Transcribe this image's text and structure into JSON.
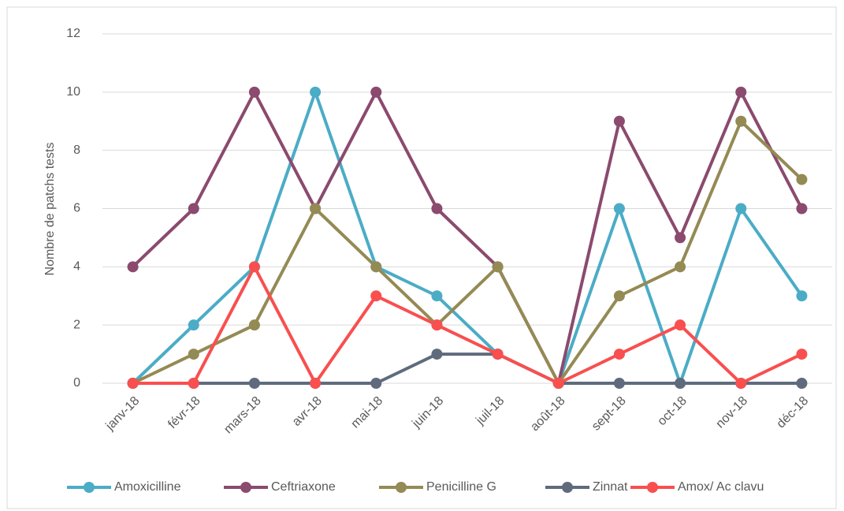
{
  "chart_data": {
    "type": "line",
    "y_label": "Nombre de patchs tests",
    "categories": [
      "janv-18",
      "févr-18",
      "mars-18",
      "avr-18",
      "mai-18",
      "juin-18",
      "juil-18",
      "août-18",
      "sept-18",
      "oct-18",
      "nov-18",
      "déc-18"
    ],
    "series": [
      {
        "name": "Amoxicilline",
        "color": "#4bacc6",
        "values": [
          0,
          2,
          4,
          10,
          4,
          3,
          1,
          0,
          6,
          0,
          6,
          3
        ]
      },
      {
        "name": "Ceftriaxone",
        "color": "#8b4a6e",
        "values": [
          4,
          6,
          10,
          6,
          10,
          6,
          4,
          0,
          9,
          5,
          10,
          6
        ]
      },
      {
        "name": "Penicilline G",
        "color": "#948a54",
        "values": [
          0,
          1,
          2,
          6,
          4,
          2,
          4,
          0,
          3,
          4,
          9,
          7
        ]
      },
      {
        "name": "Zinnat",
        "color": "#5f6b7d",
        "values": [
          0,
          0,
          0,
          0,
          0,
          1,
          1,
          0,
          0,
          0,
          0,
          0
        ]
      },
      {
        "name": "Amox/ Ac clavu",
        "color": "#f94f4f",
        "values": [
          0,
          0,
          4,
          0,
          3,
          2,
          1,
          0,
          1,
          2,
          0,
          1
        ]
      }
    ],
    "ylim": [
      0,
      12
    ],
    "yticks": [
      0,
      2,
      4,
      6,
      8,
      10,
      12
    ],
    "grid": true,
    "legend": "bottom"
  }
}
